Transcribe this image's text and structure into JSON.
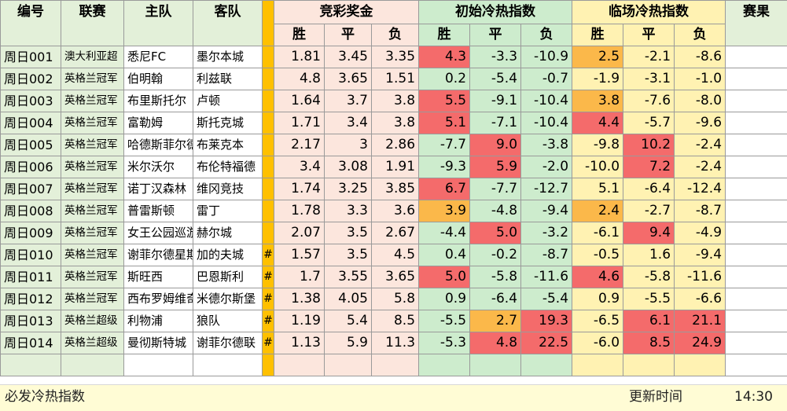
{
  "header": {
    "id": "编号",
    "league": "联赛",
    "home": "主队",
    "away": "客队",
    "odds_group": "竞彩奖金",
    "initial_group": "初始冷热指数",
    "live_group": "临场冷热指数",
    "result": "赛果",
    "win": "胜",
    "draw": "平",
    "lose": "负"
  },
  "colors": {
    "header_green": "#e3f0d9",
    "odds_pink": "#fce6dd",
    "initial_green": "#cdeccd",
    "live_yellow": "#fff2b2",
    "marker_orange": "#ffc000",
    "hot_red": "#f46b6b",
    "warm_amber": "#fbb84a"
  },
  "rows": [
    {
      "id": "周日001",
      "league": "澳大利亚超",
      "home": "悉尼FC",
      "away": "墨尔本城",
      "mark": "",
      "odds": [
        "1.81",
        "3.45",
        "3.35"
      ],
      "init": [
        "4.3",
        "-3.3",
        "-10.9"
      ],
      "live": [
        "2.5",
        "-2.1",
        "-8.6"
      ]
    },
    {
      "id": "周日002",
      "league": "英格兰冠军",
      "home": "伯明翰",
      "away": "利兹联",
      "mark": "",
      "odds": [
        "4.8",
        "3.65",
        "1.51"
      ],
      "init": [
        "0.2",
        "-5.4",
        "-0.7"
      ],
      "live": [
        "-1.9",
        "-3.1",
        "-1.0"
      ]
    },
    {
      "id": "周日003",
      "league": "英格兰冠军",
      "home": "布里斯托尔",
      "away": "卢顿",
      "mark": "",
      "odds": [
        "1.64",
        "3.7",
        "3.8"
      ],
      "init": [
        "5.5",
        "-9.1",
        "-10.4"
      ],
      "live": [
        "3.8",
        "-7.6",
        "-8.0"
      ]
    },
    {
      "id": "周日004",
      "league": "英格兰冠军",
      "home": "富勒姆",
      "away": "斯托克城",
      "mark": "",
      "odds": [
        "1.71",
        "3.4",
        "3.8"
      ],
      "init": [
        "5.1",
        "-7.1",
        "-10.4"
      ],
      "live": [
        "4.4",
        "-5.7",
        "-9.6"
      ]
    },
    {
      "id": "周日005",
      "league": "英格兰冠军",
      "home": "哈德斯菲尔德",
      "away": "布莱克本",
      "mark": "",
      "odds": [
        "2.17",
        "3",
        "2.86"
      ],
      "init": [
        "-7.7",
        "9.0",
        "-3.8"
      ],
      "live": [
        "-9.8",
        "10.2",
        "-2.4"
      ]
    },
    {
      "id": "周日006",
      "league": "英格兰冠军",
      "home": "米尔沃尔",
      "away": "布伦特福德",
      "mark": "",
      "odds": [
        "3.4",
        "3.08",
        "1.91"
      ],
      "init": [
        "-9.3",
        "5.9",
        "-2.0"
      ],
      "live": [
        "-10.0",
        "7.2",
        "-2.4"
      ]
    },
    {
      "id": "周日007",
      "league": "英格兰冠军",
      "home": "诺丁汉森林",
      "away": "维冈竞技",
      "mark": "",
      "odds": [
        "1.74",
        "3.25",
        "3.85"
      ],
      "init": [
        "6.7",
        "-7.7",
        "-12.7"
      ],
      "live": [
        "5.1",
        "-6.4",
        "-12.4"
      ]
    },
    {
      "id": "周日008",
      "league": "英格兰冠军",
      "home": "普雷斯顿",
      "away": "雷丁",
      "mark": "",
      "odds": [
        "1.78",
        "3.3",
        "3.6"
      ],
      "init": [
        "3.9",
        "-4.8",
        "-9.4"
      ],
      "live": [
        "2.4",
        "-2.7",
        "-8.7"
      ]
    },
    {
      "id": "周日009",
      "league": "英格兰冠军",
      "home": "女王公园巡游者",
      "away": "赫尔城",
      "mark": "",
      "odds": [
        "2.07",
        "3.5",
        "2.67"
      ],
      "init": [
        "-4.4",
        "5.0",
        "-3.2"
      ],
      "live": [
        "-6.1",
        "9.4",
        "-4.9"
      ]
    },
    {
      "id": "周日010",
      "league": "英格兰冠军",
      "home": "谢菲尔德星期三",
      "away": "加的夫城",
      "mark": "#",
      "odds": [
        "1.57",
        "3.5",
        "4.5"
      ],
      "init": [
        "0.4",
        "-0.2",
        "-8.7"
      ],
      "live": [
        "-0.5",
        "1.6",
        "-9.4"
      ]
    },
    {
      "id": "周日011",
      "league": "英格兰冠军",
      "home": "斯旺西",
      "away": "巴恩斯利",
      "mark": "#",
      "odds": [
        "1.7",
        "3.55",
        "3.65"
      ],
      "init": [
        "5.0",
        "-5.8",
        "-11.6"
      ],
      "live": [
        "4.6",
        "-5.8",
        "-11.6"
      ]
    },
    {
      "id": "周日012",
      "league": "英格兰冠军",
      "home": "西布罗姆维奇",
      "away": "米德尔斯堡",
      "mark": "#",
      "odds": [
        "1.38",
        "4.05",
        "5.8"
      ],
      "init": [
        "0.9",
        "-6.4",
        "-5.4"
      ],
      "live": [
        "0.9",
        "-5.5",
        "-6.6"
      ]
    },
    {
      "id": "周日013",
      "league": "英格兰超级",
      "home": "利物浦",
      "away": "狼队",
      "mark": "#",
      "odds": [
        "1.19",
        "5.4",
        "8.5"
      ],
      "init": [
        "-5.5",
        "2.7",
        "19.3"
      ],
      "live": [
        "-6.5",
        "6.1",
        "21.1"
      ]
    },
    {
      "id": "周日014",
      "league": "英格兰超级",
      "home": "曼彻斯特城",
      "away": "谢菲尔德联",
      "mark": "#",
      "odds": [
        "1.13",
        "5.9",
        "11.3"
      ],
      "init": [
        "-5.3",
        "4.8",
        "22.5"
      ],
      "live": [
        "-6.0",
        "8.5",
        "24.9"
      ]
    }
  ],
  "highlights": {
    "init": [
      [
        "red",
        "",
        ""
      ],
      [
        "",
        "",
        ""
      ],
      [
        "red",
        "",
        ""
      ],
      [
        "red",
        "",
        ""
      ],
      [
        "",
        "red",
        ""
      ],
      [
        "",
        "red",
        ""
      ],
      [
        "red",
        "",
        ""
      ],
      [
        "amber",
        "",
        ""
      ],
      [
        "",
        "red",
        ""
      ],
      [
        "",
        "",
        ""
      ],
      [
        "red",
        "",
        ""
      ],
      [
        "",
        "",
        ""
      ],
      [
        "",
        "amber",
        "red"
      ],
      [
        "",
        "red",
        "red"
      ]
    ],
    "live": [
      [
        "amber",
        "",
        ""
      ],
      [
        "",
        "",
        ""
      ],
      [
        "amber",
        "",
        ""
      ],
      [
        "red",
        "",
        ""
      ],
      [
        "",
        "red",
        ""
      ],
      [
        "",
        "red",
        ""
      ],
      [
        "",
        "",
        ""
      ],
      [
        "amber",
        "",
        ""
      ],
      [
        "",
        "red",
        ""
      ],
      [
        "",
        "",
        ""
      ],
      [
        "red",
        "",
        ""
      ],
      [
        "",
        "",
        ""
      ],
      [
        "",
        "red",
        "red"
      ],
      [
        "",
        "red",
        "red"
      ]
    ]
  },
  "footer": {
    "label": "必发冷热指数",
    "update_label": "更新时间",
    "time": "14:30"
  }
}
